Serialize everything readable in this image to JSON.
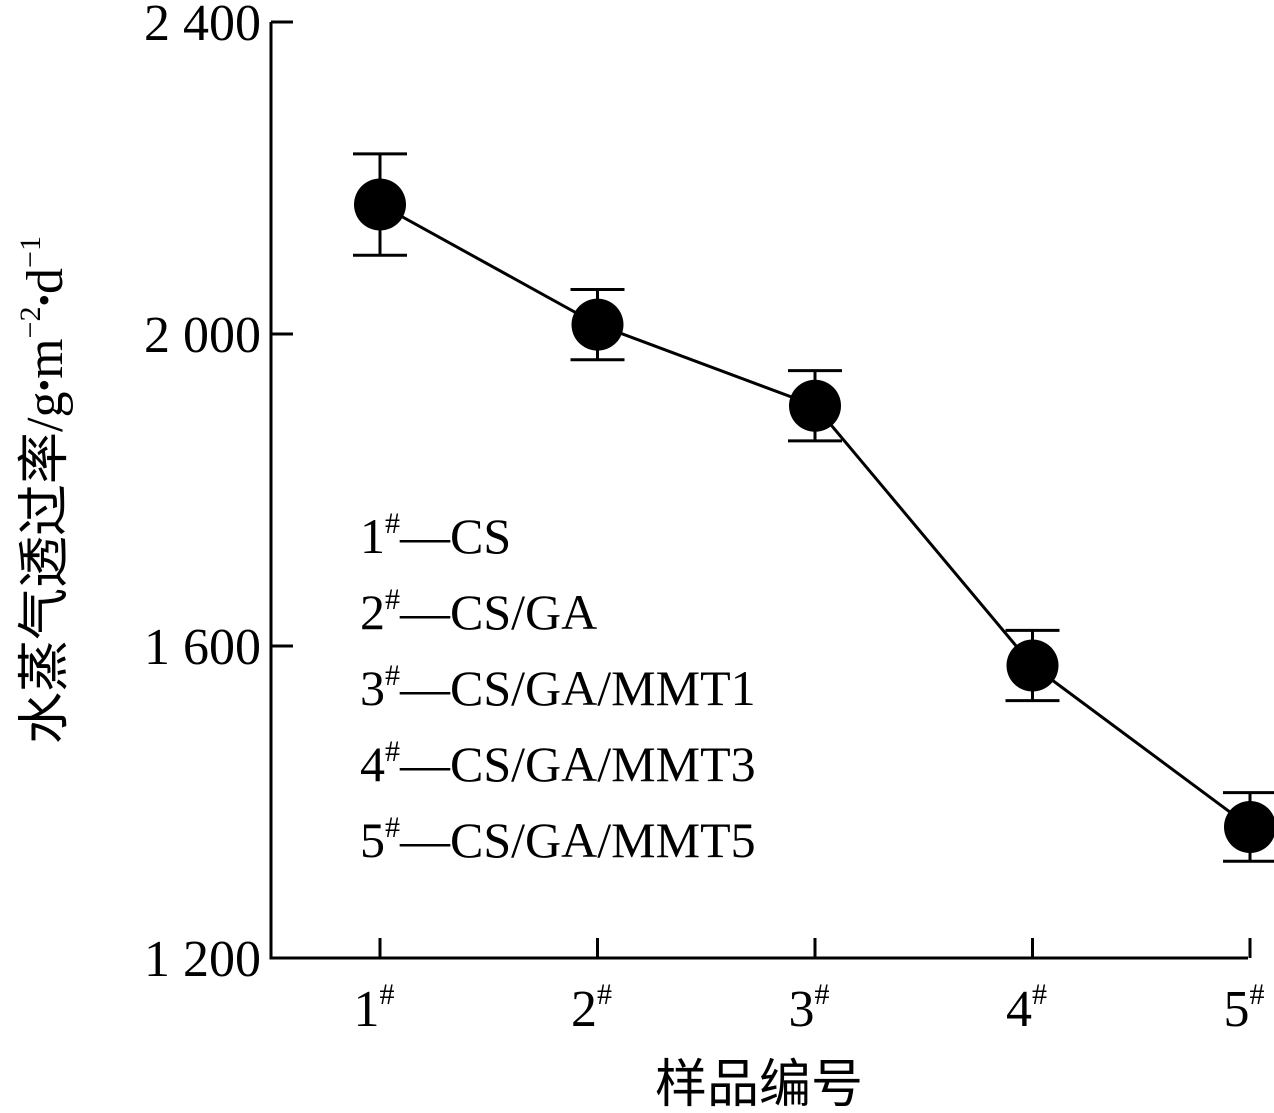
{
  "chart_data": {
    "type": "line",
    "title": "",
    "xlabel": "样品编号",
    "ylabel": "水蒸气透过率/g·m⁻²·d⁻¹",
    "ylabel_parts": {
      "main": "水蒸气透过率/g",
      "dot": "•",
      "m": "m",
      "m_exp": "−2",
      "d": "d",
      "d_exp": "−1"
    },
    "ylim": [
      1200,
      2400
    ],
    "yticks": [
      1200,
      1600,
      2000,
      2400
    ],
    "ytick_labels": [
      "1 200",
      "1 600",
      "2 000",
      "2 400"
    ],
    "categories": [
      {
        "num": "1",
        "sup": "#"
      },
      {
        "num": "2",
        "sup": "#"
      },
      {
        "num": "3",
        "sup": "#"
      },
      {
        "num": "4",
        "sup": "#"
      },
      {
        "num": "5",
        "sup": "#"
      }
    ],
    "series": [
      {
        "values": [
          2166,
          2012,
          1908,
          1575,
          1368
        ],
        "errors": [
          65,
          45,
          45,
          45,
          44
        ],
        "color": "#000000",
        "marker": "filled-circle"
      }
    ],
    "legend": {
      "placement": "center-left",
      "entries": [
        {
          "num": "1",
          "sup": "#",
          "text": "—CS"
        },
        {
          "num": "2",
          "sup": "#",
          "text": "—CS/GA"
        },
        {
          "num": "3",
          "sup": "#",
          "text": "—CS/GA/MMT1"
        },
        {
          "num": "4",
          "sup": "#",
          "text": "—CS/GA/MMT3"
        },
        {
          "num": "5",
          "sup": "#",
          "text": "—CS/GA/MMT5"
        }
      ]
    },
    "grid": false
  }
}
